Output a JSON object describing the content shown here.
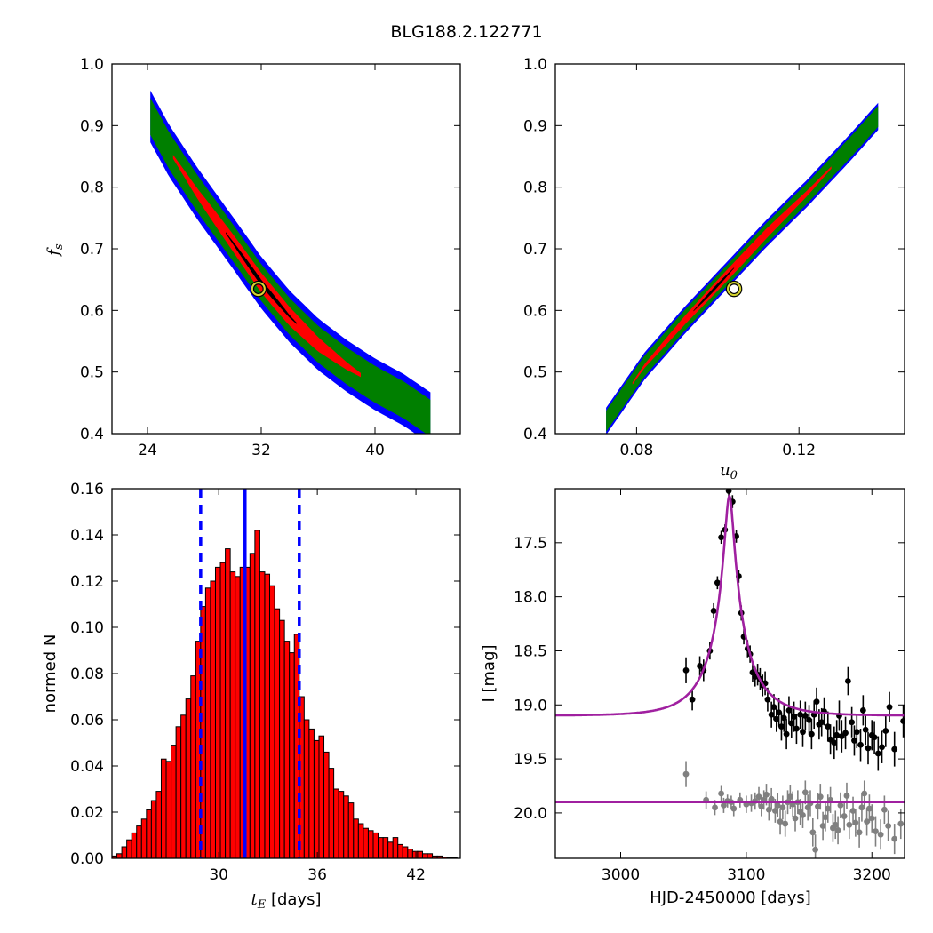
{
  "figure_title": "BLG188.2.122771",
  "chart_data": [
    {
      "id": "tE_fs",
      "type": "heatmap",
      "title": "",
      "xlabel": "",
      "ylabel": "f_s",
      "xlim": [
        21.5,
        46.0
      ],
      "ylim": [
        0.4,
        1.0
      ],
      "xticks": [
        24,
        32,
        40
      ],
      "yticks": [
        0.4,
        0.5,
        0.6,
        0.7,
        0.8,
        0.9,
        1.0
      ],
      "yticklabels": [
        "0.4",
        "0.5",
        "0.6",
        "0.7",
        "0.8",
        "0.9",
        "1.0"
      ],
      "ridge": [
        [
          24.2,
          0.915
        ],
        [
          25.5,
          0.86
        ],
        [
          27.5,
          0.79
        ],
        [
          30.0,
          0.71
        ],
        [
          32.0,
          0.645
        ],
        [
          34.0,
          0.59
        ],
        [
          36.0,
          0.545
        ],
        [
          38.0,
          0.51
        ],
        [
          40.0,
          0.48
        ],
        [
          42.0,
          0.455
        ],
        [
          43.9,
          0.425
        ]
      ],
      "levels": [
        {
          "name": "outer",
          "color": "#0000ff",
          "halfwidth": 0.042
        },
        {
          "name": "middle",
          "color": "#007f00",
          "halfwidth": 0.03
        },
        {
          "name": "inner",
          "color": "#ff0000",
          "halfwidth": 0.016,
          "x_range": [
            25.8,
            39.0
          ]
        },
        {
          "name": "core",
          "color": "#000000",
          "halfwidth": 0.005,
          "x_range": [
            29.5,
            34.5
          ]
        }
      ],
      "best_fit": {
        "x": 31.8,
        "y": 0.635,
        "color": "#d4d430"
      }
    },
    {
      "id": "u0_fs",
      "type": "heatmap",
      "title": "",
      "xlabel": "u_0",
      "ylabel": "",
      "xlim": [
        0.06,
        0.146
      ],
      "ylim": [
        0.4,
        1.0
      ],
      "xticks": [
        0.08,
        0.12
      ],
      "xticklabels": [
        "0.08",
        "0.12"
      ],
      "yticks": [
        0.4,
        0.5,
        0.6,
        0.7,
        0.8,
        0.9,
        1.0
      ],
      "yticklabels": [
        "0.4",
        "0.5",
        "0.6",
        "0.7",
        "0.8",
        "0.9",
        "1.0"
      ],
      "ridge": [
        [
          0.0725,
          0.42
        ],
        [
          0.082,
          0.51
        ],
        [
          0.092,
          0.585
        ],
        [
          0.102,
          0.655
        ],
        [
          0.112,
          0.725
        ],
        [
          0.122,
          0.79
        ],
        [
          0.132,
          0.86
        ],
        [
          0.1395,
          0.915
        ]
      ],
      "levels": [
        {
          "name": "outer",
          "color": "#0000ff",
          "halfwidth": 0.022
        },
        {
          "name": "middle",
          "color": "#007f00",
          "halfwidth": 0.017
        },
        {
          "name": "inner",
          "color": "#ff0000",
          "halfwidth": 0.009,
          "x_range": [
            0.079,
            0.128
          ]
        },
        {
          "name": "core",
          "color": "#000000",
          "halfwidth": 0.003,
          "x_range": [
            0.094,
            0.104
          ]
        }
      ],
      "best_fit": {
        "x": 0.104,
        "y": 0.635,
        "color": "#d4d430"
      }
    },
    {
      "id": "tE_hist",
      "type": "bar",
      "title": "",
      "xlabel": "t_E  [days]",
      "ylabel": "normed N",
      "xlim": [
        23.5,
        44.7
      ],
      "ylim": [
        0,
        0.16
      ],
      "xticks": [
        30,
        36,
        42
      ],
      "yticks": [
        0.0,
        0.02,
        0.04,
        0.06,
        0.08,
        0.1,
        0.12,
        0.14,
        0.16
      ],
      "yticklabels": [
        "0.00",
        "0.02",
        "0.04",
        "0.06",
        "0.08",
        "0.10",
        "0.12",
        "0.14",
        "0.16"
      ],
      "bin_start": 23.5,
      "bin_width": 0.3,
      "values": [
        0.001,
        0.002,
        0.005,
        0.008,
        0.011,
        0.014,
        0.017,
        0.021,
        0.025,
        0.029,
        0.043,
        0.042,
        0.049,
        0.057,
        0.062,
        0.069,
        0.079,
        0.094,
        0.109,
        0.117,
        0.12,
        0.126,
        0.128,
        0.134,
        0.124,
        0.122,
        0.126,
        0.126,
        0.132,
        0.142,
        0.124,
        0.123,
        0.118,
        0.108,
        0.103,
        0.094,
        0.089,
        0.097,
        0.07,
        0.06,
        0.056,
        0.051,
        0.053,
        0.046,
        0.039,
        0.03,
        0.029,
        0.027,
        0.024,
        0.017,
        0.015,
        0.013,
        0.012,
        0.011,
        0.009,
        0.009,
        0.007,
        0.009,
        0.006,
        0.005,
        0.004,
        0.003,
        0.003,
        0.002,
        0.002,
        0.001,
        0.001,
        0.0005,
        0.0003,
        0.0002
      ],
      "bar_color": "#ff0000",
      "median": 31.6,
      "interval": [
        28.9,
        34.9
      ],
      "line_color": "#0000ff"
    },
    {
      "id": "lightcurve",
      "type": "scatter",
      "title": "",
      "xlabel": "HJD-2450000 [days]",
      "ylabel": "I [mag]",
      "xlim": [
        2948,
        3226
      ],
      "ylim": [
        20.42,
        17.0
      ],
      "y_inverted": true,
      "xticks": [
        3000,
        3100,
        3200
      ],
      "yticks": [
        17.5,
        18.0,
        18.5,
        19.0,
        19.5,
        20.0
      ],
      "yticklabels": [
        "17.5",
        "18.0",
        "18.5",
        "19.0",
        "19.5",
        "20.0"
      ],
      "model": {
        "t0": 3086.5,
        "u0": 0.104,
        "tE": 31.8,
        "fs": 0.635,
        "baseline": 19.1,
        "color": "#a020a0"
      },
      "baseline2": 19.9,
      "series": [
        {
          "color": "#000000",
          "points": [
            [
              3052,
              18.68,
              0.12
            ],
            [
              3057,
              18.95,
              0.1
            ],
            [
              3063,
              18.64,
              0.09
            ],
            [
              3066,
              18.68,
              0.1
            ],
            [
              3071,
              18.5,
              0.08
            ],
            [
              3074,
              18.13,
              0.07
            ],
            [
              3077,
              17.87,
              0.06
            ],
            [
              3080,
              17.45,
              0.06
            ],
            [
              3083,
              17.38,
              0.05
            ],
            [
              3086,
              17.02,
              0.05
            ],
            [
              3089,
              17.12,
              0.06
            ],
            [
              3092,
              17.44,
              0.06
            ],
            [
              3094,
              17.81,
              0.06
            ],
            [
              3096,
              18.15,
              0.07
            ],
            [
              3098,
              18.37,
              0.07
            ],
            [
              3101,
              18.48,
              0.08
            ],
            [
              3103,
              18.53,
              0.08
            ],
            [
              3105,
              18.7,
              0.09
            ],
            [
              3107,
              18.74,
              0.09
            ],
            [
              3109,
              18.72,
              0.1
            ],
            [
              3111,
              18.76,
              0.1
            ],
            [
              3113,
              18.82,
              0.1
            ],
            [
              3115,
              18.8,
              0.11
            ],
            [
              3117,
              18.95,
              0.11
            ],
            [
              3120,
              19.09,
              0.12
            ],
            [
              3122,
              19.02,
              0.12
            ],
            [
              3124,
              19.13,
              0.12
            ],
            [
              3126,
              19.07,
              0.13
            ],
            [
              3128,
              19.2,
              0.13
            ],
            [
              3130,
              19.12,
              0.13
            ],
            [
              3132,
              19.27,
              0.14
            ],
            [
              3134,
              19.05,
              0.13
            ],
            [
              3136,
              19.17,
              0.14
            ],
            [
              3138,
              19.11,
              0.14
            ],
            [
              3140,
              19.22,
              0.14
            ],
            [
              3143,
              19.09,
              0.13
            ],
            [
              3145,
              19.25,
              0.14
            ],
            [
              3147,
              19.1,
              0.13
            ],
            [
              3150,
              19.14,
              0.14
            ],
            [
              3152,
              19.27,
              0.14
            ],
            [
              3154,
              19.09,
              0.13
            ],
            [
              3156,
              18.97,
              0.13
            ],
            [
              3158,
              19.18,
              0.14
            ],
            [
              3160,
              19.16,
              0.13
            ],
            [
              3162,
              19.06,
              0.13
            ],
            [
              3165,
              19.2,
              0.14
            ],
            [
              3167,
              19.32,
              0.14
            ],
            [
              3170,
              19.35,
              0.15
            ],
            [
              3172,
              19.28,
              0.14
            ],
            [
              3174,
              19.1,
              0.14
            ],
            [
              3176,
              19.29,
              0.15
            ],
            [
              3179,
              19.26,
              0.15
            ],
            [
              3181,
              18.78,
              0.13
            ],
            [
              3184,
              19.16,
              0.14
            ],
            [
              3186,
              19.33,
              0.14
            ],
            [
              3188,
              19.25,
              0.15
            ],
            [
              3191,
              19.37,
              0.15
            ],
            [
              3193,
              19.05,
              0.14
            ],
            [
              3195,
              19.23,
              0.14
            ],
            [
              3197,
              19.4,
              0.15
            ],
            [
              3200,
              19.28,
              0.14
            ],
            [
              3202,
              19.3,
              0.15
            ],
            [
              3205,
              19.45,
              0.16
            ],
            [
              3208,
              19.39,
              0.15
            ],
            [
              3211,
              19.24,
              0.15
            ],
            [
              3214,
              19.02,
              0.14
            ],
            [
              3218,
              19.41,
              0.16
            ],
            [
              3225,
              19.15,
              0.15
            ]
          ]
        },
        {
          "color": "#808080",
          "points": [
            [
              3052,
              19.64,
              0.12
            ],
            [
              3068,
              19.88,
              0.08
            ],
            [
              3075,
              19.95,
              0.07
            ],
            [
              3080,
              19.82,
              0.07
            ],
            [
              3082,
              19.93,
              0.07
            ],
            [
              3085,
              19.89,
              0.06
            ],
            [
              3088,
              19.9,
              0.06
            ],
            [
              3090,
              19.96,
              0.07
            ],
            [
              3095,
              19.88,
              0.07
            ],
            [
              3100,
              19.92,
              0.08
            ],
            [
              3104,
              19.91,
              0.08
            ],
            [
              3107,
              19.89,
              0.08
            ],
            [
              3110,
              19.85,
              0.09
            ],
            [
              3112,
              19.94,
              0.09
            ],
            [
              3114,
              19.88,
              0.09
            ],
            [
              3116,
              19.83,
              0.1
            ],
            [
              3118,
              19.97,
              0.1
            ],
            [
              3120,
              19.87,
              0.1
            ],
            [
              3123,
              19.98,
              0.11
            ],
            [
              3125,
              19.93,
              0.11
            ],
            [
              3127,
              20.08,
              0.12
            ],
            [
              3129,
              19.95,
              0.11
            ],
            [
              3131,
              20.1,
              0.12
            ],
            [
              3133,
              19.9,
              0.11
            ],
            [
              3135,
              19.85,
              0.11
            ],
            [
              3137,
              19.92,
              0.12
            ],
            [
              3139,
              20.05,
              0.12
            ],
            [
              3141,
              19.9,
              0.11
            ],
            [
              3143,
              19.99,
              0.12
            ],
            [
              3145,
              20.02,
              0.12
            ],
            [
              3147,
              19.81,
              0.11
            ],
            [
              3149,
              19.95,
              0.12
            ],
            [
              3151,
              19.91,
              0.12
            ],
            [
              3153,
              20.18,
              0.13
            ],
            [
              3155,
              20.34,
              0.14
            ],
            [
              3157,
              19.94,
              0.12
            ],
            [
              3159,
              19.85,
              0.12
            ],
            [
              3161,
              20.12,
              0.13
            ],
            [
              3163,
              20.04,
              0.13
            ],
            [
              3165,
              19.96,
              0.13
            ],
            [
              3167,
              19.88,
              0.12
            ],
            [
              3169,
              20.14,
              0.13
            ],
            [
              3171,
              20.11,
              0.13
            ],
            [
              3173,
              20.16,
              0.13
            ],
            [
              3175,
              19.93,
              0.12
            ],
            [
              3178,
              20.03,
              0.13
            ],
            [
              3180,
              19.84,
              0.12
            ],
            [
              3182,
              20.11,
              0.13
            ],
            [
              3185,
              19.98,
              0.13
            ],
            [
              3187,
              20.09,
              0.13
            ],
            [
              3190,
              20.18,
              0.14
            ],
            [
              3192,
              19.95,
              0.13
            ],
            [
              3194,
              19.82,
              0.12
            ],
            [
              3196,
              20.08,
              0.13
            ],
            [
              3198,
              19.96,
              0.13
            ],
            [
              3200,
              20.05,
              0.13
            ],
            [
              3203,
              20.17,
              0.14
            ],
            [
              3207,
              20.2,
              0.14
            ],
            [
              3210,
              19.97,
              0.13
            ],
            [
              3213,
              20.12,
              0.14
            ],
            [
              3218,
              20.24,
              0.14
            ],
            [
              3223,
              20.1,
              0.14
            ]
          ]
        }
      ]
    }
  ]
}
